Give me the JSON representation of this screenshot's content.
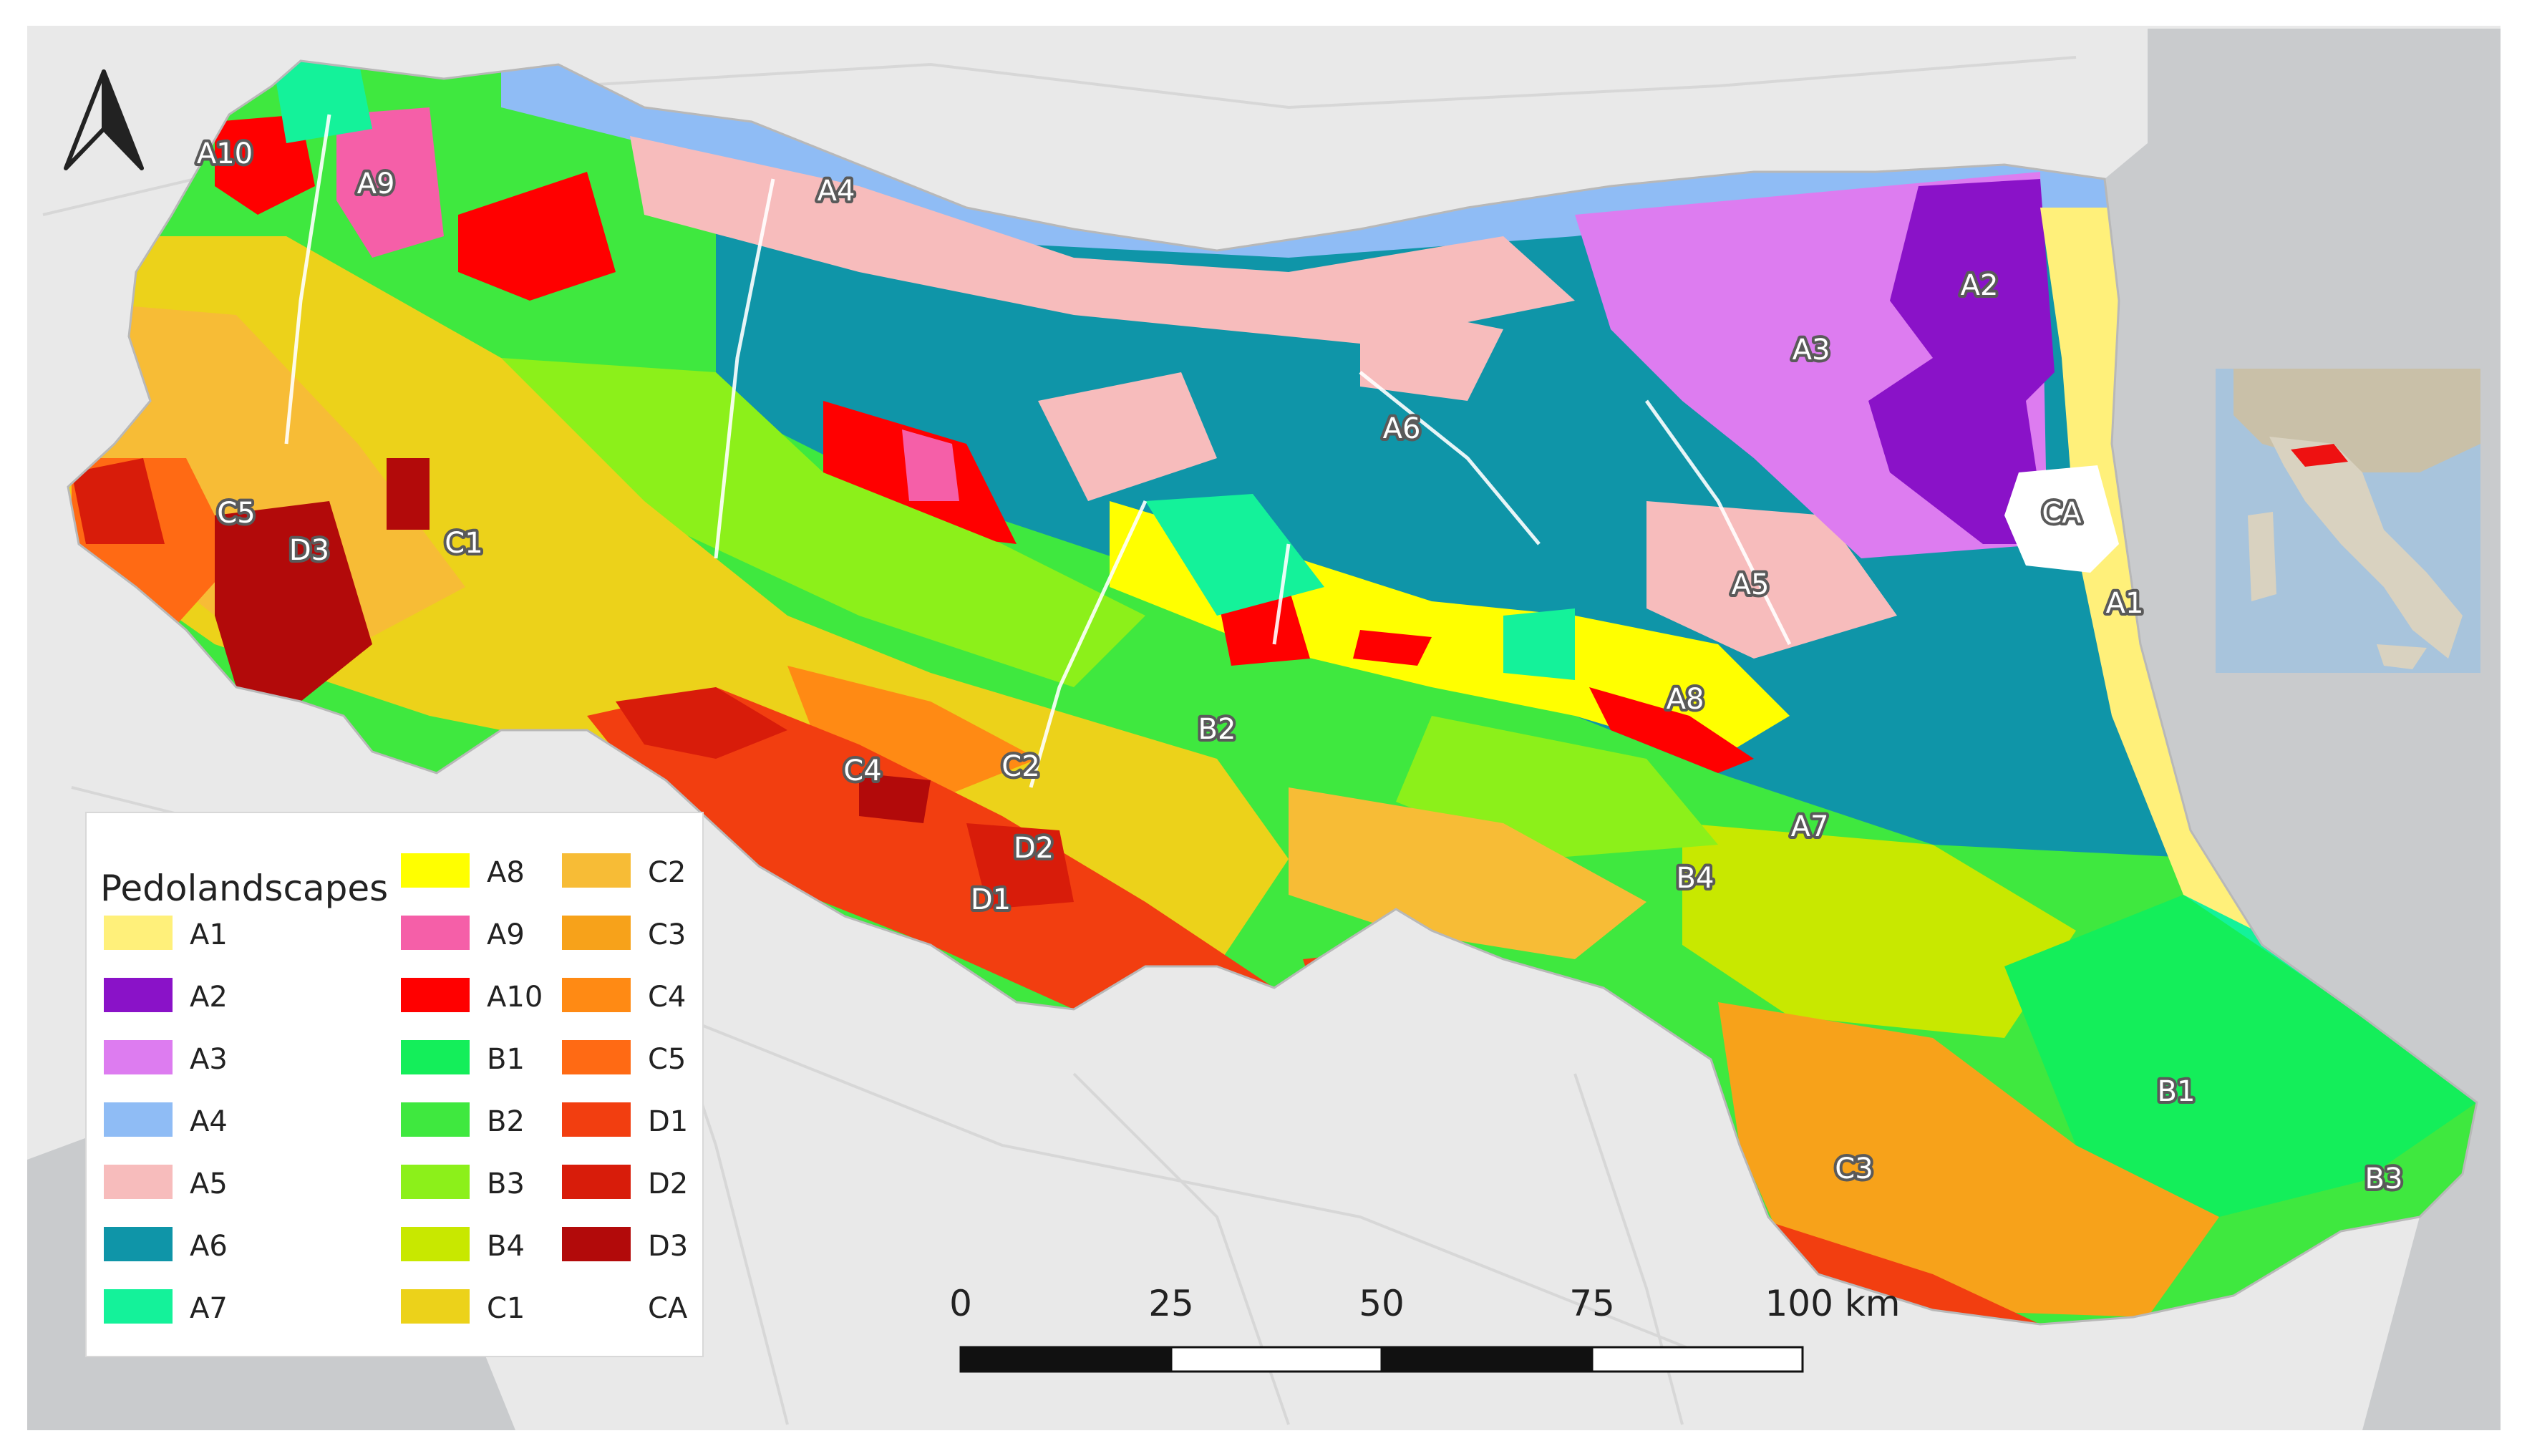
{
  "legend": {
    "title": "Pedolandscapes",
    "items": [
      {
        "code": "A1",
        "color": "#fff07a"
      },
      {
        "code": "A2",
        "color": "#8a12c8"
      },
      {
        "code": "A3",
        "color": "#dd7cf0"
      },
      {
        "code": "A4",
        "color": "#8fbcf5"
      },
      {
        "code": "A5",
        "color": "#f7bcbc"
      },
      {
        "code": "A6",
        "color": "#0f95a8"
      },
      {
        "code": "A7",
        "color": "#14f29a"
      },
      {
        "code": "A8",
        "color": "#ffff00"
      },
      {
        "code": "A9",
        "color": "#f55fa8"
      },
      {
        "code": "A10",
        "color": "#ff0000"
      },
      {
        "code": "B1",
        "color": "#14ee5a"
      },
      {
        "code": "B2",
        "color": "#3fe83f"
      },
      {
        "code": "B3",
        "color": "#8cf01a"
      },
      {
        "code": "B4",
        "color": "#c8e800"
      },
      {
        "code": "C1",
        "color": "#ecd21a"
      },
      {
        "code": "C2",
        "color": "#f7bc36"
      },
      {
        "code": "C3",
        "color": "#f7a21a"
      },
      {
        "code": "C4",
        "color": "#ff8a14"
      },
      {
        "code": "C5",
        "color": "#ff6a14"
      },
      {
        "code": "D1",
        "color": "#f23e10"
      },
      {
        "code": "D2",
        "color": "#d81c0a"
      },
      {
        "code": "D3",
        "color": "#b20a0a"
      },
      {
        "code": "CA",
        "color": "#ffffff"
      }
    ]
  },
  "map_labels": [
    {
      "text": "A10"
    },
    {
      "text": "A9"
    },
    {
      "text": "A4"
    },
    {
      "text": "A2"
    },
    {
      "text": "A3"
    },
    {
      "text": "A6"
    },
    {
      "text": "CA"
    },
    {
      "text": "A1"
    },
    {
      "text": "A5"
    },
    {
      "text": "C5"
    },
    {
      "text": "D3"
    },
    {
      "text": "C1"
    },
    {
      "text": "A8"
    },
    {
      "text": "B2"
    },
    {
      "text": "C4"
    },
    {
      "text": "C2"
    },
    {
      "text": "A7"
    },
    {
      "text": "D2"
    },
    {
      "text": "D1"
    },
    {
      "text": "B4"
    },
    {
      "text": "B1"
    },
    {
      "text": "C3"
    },
    {
      "text": "B3"
    }
  ],
  "scalebar": {
    "ticks": [
      "0",
      "25",
      "50",
      "75",
      "100 km"
    ]
  },
  "north_arrow": {
    "icon": "north-arrow-icon"
  },
  "inset": {
    "icon": "italy-locator-icon"
  }
}
